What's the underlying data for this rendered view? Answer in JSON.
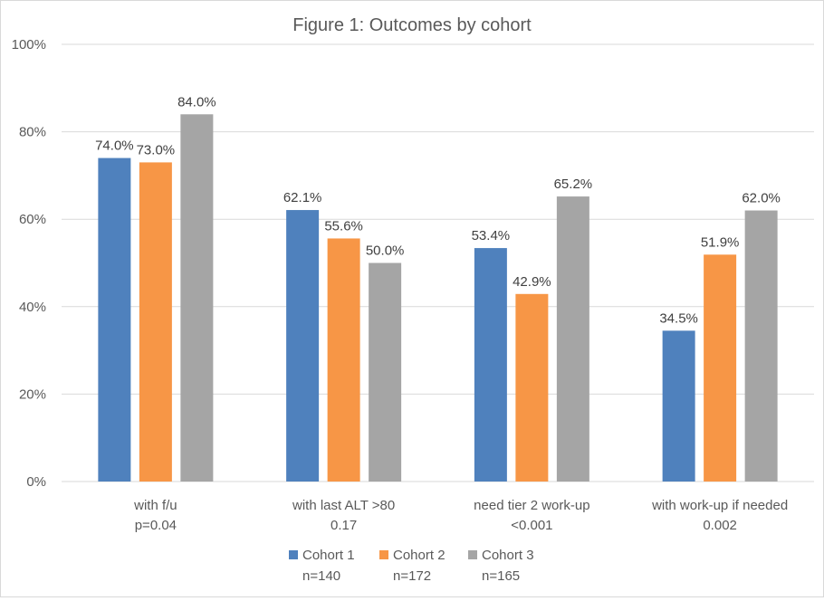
{
  "chart_data": {
    "type": "bar",
    "title": "Figure 1: Outcomes by cohort",
    "categories": [
      {
        "label": "with f/u",
        "sublabel": "p=0.04"
      },
      {
        "label": "with last ALT >80",
        "sublabel": "0.17"
      },
      {
        "label": "need tier 2 work-up",
        "sublabel": "<0.001"
      },
      {
        "label": "with work-up if needed",
        "sublabel": "0.002"
      }
    ],
    "series": [
      {
        "name": "Cohort 1",
        "sublabel": "n=140",
        "color": "#4f81bd",
        "values": [
          74.0,
          62.1,
          53.4,
          34.5
        ]
      },
      {
        "name": "Cohort 2",
        "sublabel": "n=172",
        "color": "#f79646",
        "values": [
          73.0,
          55.6,
          42.9,
          51.9
        ]
      },
      {
        "name": "Cohort 3",
        "sublabel": "n=165",
        "color": "#a5a5a5",
        "values": [
          84.0,
          50.0,
          65.2,
          62.0
        ]
      }
    ],
    "data_labels": [
      [
        "74.0%",
        "73.0%",
        "84.0%"
      ],
      [
        "62.1%",
        "55.6%",
        "50.0%"
      ],
      [
        "53.4%",
        "42.9%",
        "65.2%"
      ],
      [
        "34.5%",
        "51.9%",
        "62.0%"
      ]
    ],
    "yticks": [
      "0%",
      "20%",
      "40%",
      "60%",
      "80%",
      "100%"
    ],
    "ylim": [
      0,
      100
    ],
    "grid": true,
    "legend_position": "bottom"
  }
}
